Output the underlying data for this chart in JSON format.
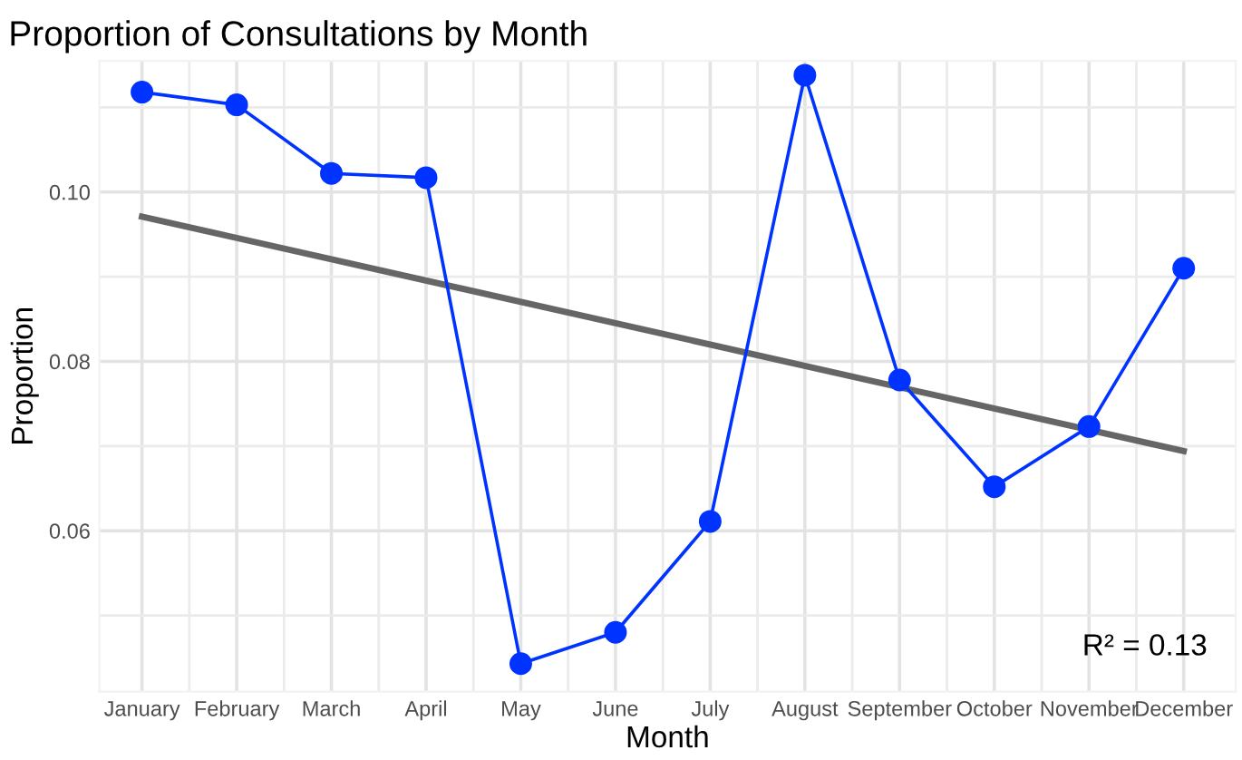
{
  "chart_data": {
    "type": "line",
    "title": "Proportion of Consultations by Month",
    "xlabel": "Month",
    "ylabel": "Proportion",
    "categories": [
      "January",
      "February",
      "March",
      "April",
      "May",
      "June",
      "July",
      "August",
      "September",
      "October",
      "November",
      "December"
    ],
    "series": [
      {
        "color": "#0033ff",
        "marker": "circle",
        "values": [
          0.1118,
          0.1103,
          0.1022,
          0.1017,
          0.0443,
          0.048,
          0.0611,
          0.1138,
          0.0778,
          0.0652,
          0.0723,
          0.091
        ]
      },
      {
        "type": "line",
        "color": "#666666",
        "marker": "none",
        "x": [
          "January",
          "December"
        ],
        "values": [
          0.0971,
          0.0694
        ]
      }
    ],
    "ylim": [
      0.041,
      0.1155
    ],
    "yticks": [
      {
        "value": 0.06,
        "label": "0.06"
      },
      {
        "value": 0.08,
        "label": "0.08"
      },
      {
        "value": 0.1,
        "label": "0.10"
      }
    ],
    "grid": true,
    "annotations": [
      "R² = 0.13"
    ]
  }
}
